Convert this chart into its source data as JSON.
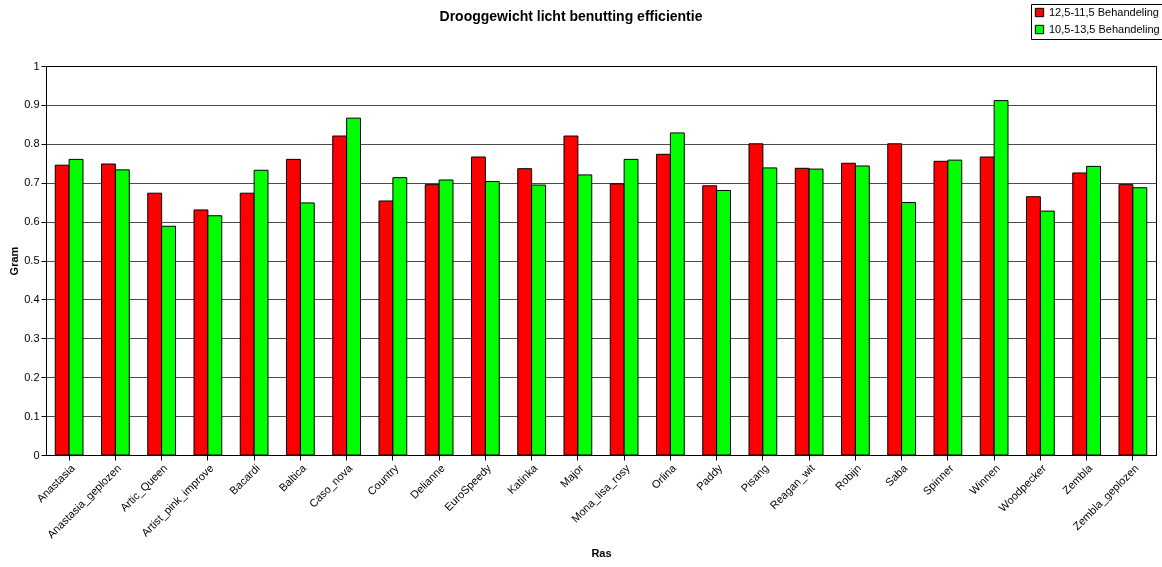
{
  "chart_data": {
    "type": "bar",
    "title": "Drooggewicht licht benutting efficientie",
    "xlabel": "Ras",
    "ylabel": "Gram",
    "categories": [
      "Anastasia",
      "Anastasia_geplozen",
      "Artic_Queen",
      "Artist_pink_improve",
      "Bacardi",
      "Baltica",
      "Caso_nova",
      "Country",
      "Delianne",
      "EuroSpeedy",
      "Katinka",
      "Major",
      "Mona_lisa_rosy",
      "Orlina",
      "Paddy",
      "Pisang",
      "Reagan_wit",
      "Robijn",
      "Saba",
      "Spinner",
      "Winnen",
      "Woodpecker",
      "Zembla",
      "Zembla_geplozen"
    ],
    "series": [
      {
        "name": "12,5-11,5 Behandeling",
        "color": "#ff0000",
        "values": [
          0.745,
          0.748,
          0.673,
          0.63,
          0.673,
          0.76,
          0.82,
          0.653,
          0.695,
          0.766,
          0.736,
          0.82,
          0.697,
          0.773,
          0.692,
          0.8,
          0.737,
          0.75,
          0.8,
          0.755,
          0.766,
          0.664,
          0.725,
          0.695
        ]
      },
      {
        "name": "10,5-13,5 Behandeling",
        "color": "#00ff00",
        "values": [
          0.76,
          0.733,
          0.588,
          0.615,
          0.732,
          0.648,
          0.866,
          0.713,
          0.707,
          0.703,
          0.694,
          0.72,
          0.76,
          0.828,
          0.68,
          0.738,
          0.735,
          0.743,
          0.649,
          0.758,
          0.911,
          0.627,
          0.742,
          0.687
        ]
      }
    ],
    "ylim": [
      0,
      1
    ],
    "yticks": [
      0,
      0.1,
      0.2,
      0.3,
      0.4,
      0.5,
      0.6,
      0.7,
      0.8,
      0.9,
      1
    ],
    "grid": "y",
    "legend": "top right"
  }
}
